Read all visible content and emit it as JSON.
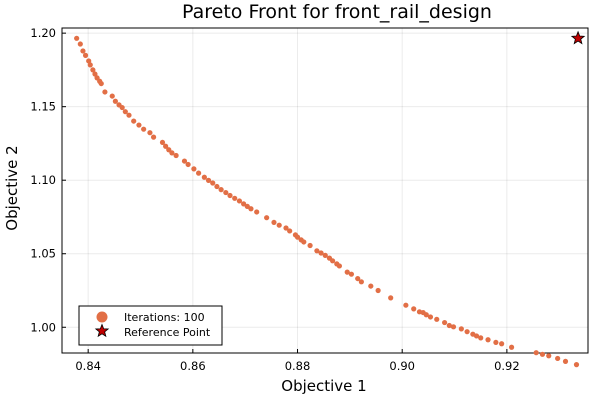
{
  "chart_data": {
    "type": "scatter",
    "title": "Pareto Front for front_rail_design",
    "xlabel": "Objective 1",
    "ylabel": "Objective 2",
    "xlim": [
      0.835,
      0.9355
    ],
    "ylim": [
      0.9825,
      1.2035
    ],
    "xticks": [
      0.84,
      0.86,
      0.88,
      0.9,
      0.92
    ],
    "xtick_labels": [
      "0.84",
      "0.86",
      "0.88",
      "0.90",
      "0.92"
    ],
    "yticks": [
      1.0,
      1.05,
      1.1,
      1.15,
      1.2
    ],
    "ytick_labels": [
      "1.00",
      "1.05",
      "1.10",
      "1.15",
      "1.20"
    ],
    "grid": true,
    "legend_position": "bottom-left",
    "series": [
      {
        "name": "Iterations: 100",
        "color": "#e26f46",
        "marker": "circle",
        "x": [
          0.8378,
          0.8385,
          0.839,
          0.8395,
          0.8401,
          0.8404,
          0.8409,
          0.8413,
          0.8417,
          0.8422,
          0.8425,
          0.8432,
          0.8446,
          0.8452,
          0.8459,
          0.8465,
          0.8471,
          0.8478,
          0.8487,
          0.8497,
          0.8506,
          0.8518,
          0.8525,
          0.8542,
          0.8548,
          0.8554,
          0.856,
          0.8568,
          0.8584,
          0.8591,
          0.8602,
          0.8611,
          0.8622,
          0.863,
          0.8638,
          0.8646,
          0.8654,
          0.8663,
          0.8671,
          0.868,
          0.8689,
          0.8697,
          0.8704,
          0.8711,
          0.8722,
          0.8741,
          0.8755,
          0.8765,
          0.8778,
          0.8785,
          0.8796,
          0.88,
          0.8807,
          0.8812,
          0.8824,
          0.8837,
          0.8845,
          0.8853,
          0.8861,
          0.8867,
          0.8875,
          0.888,
          0.8895,
          0.8903,
          0.8915,
          0.8922,
          0.894,
          0.8954,
          0.8978,
          0.9007,
          0.9022,
          0.9033,
          0.904,
          0.9046,
          0.9054,
          0.9066,
          0.9081,
          0.909,
          0.9098,
          0.9113,
          0.9124,
          0.9135,
          0.9142,
          0.915,
          0.9164,
          0.9179,
          0.919,
          0.9209,
          0.9256,
          0.9268,
          0.928,
          0.9297,
          0.9312,
          0.9333
        ],
        "y": [
          1.1965,
          1.1926,
          1.1879,
          1.1849,
          1.1811,
          1.1784,
          1.175,
          1.1722,
          1.1696,
          1.1673,
          1.1657,
          1.16,
          1.1572,
          1.1537,
          1.1512,
          1.1494,
          1.1466,
          1.1442,
          1.1402,
          1.1375,
          1.1347,
          1.1323,
          1.1293,
          1.1257,
          1.1231,
          1.1207,
          1.1186,
          1.1168,
          1.113,
          1.1107,
          1.1077,
          1.1048,
          1.102,
          1.0999,
          1.0981,
          1.0957,
          1.0936,
          1.0916,
          1.0896,
          1.0877,
          1.0859,
          1.0839,
          1.0822,
          1.0806,
          1.0784,
          1.0745,
          1.0713,
          1.0694,
          1.0675,
          1.0655,
          1.0628,
          1.0613,
          1.0594,
          1.058,
          1.0556,
          1.052,
          1.0505,
          1.0489,
          1.047,
          1.0452,
          1.0431,
          1.0417,
          1.0375,
          1.0361,
          1.0331,
          1.0309,
          1.028,
          1.025,
          1.02,
          1.015,
          1.0125,
          1.0105,
          1.01,
          1.0085,
          1.007,
          1.0054,
          1.0032,
          1.0012,
          1.0003,
          0.9989,
          0.997,
          0.9953,
          0.9941,
          0.9928,
          0.9915,
          0.9897,
          0.9888,
          0.9864,
          0.9827,
          0.9816,
          0.9806,
          0.9788,
          0.9768,
          0.9746
        ]
      },
      {
        "name": "Reference Point",
        "color": "#c00000",
        "marker": "star",
        "x": [
          0.9336
        ],
        "y": [
          1.1965
        ]
      }
    ]
  }
}
